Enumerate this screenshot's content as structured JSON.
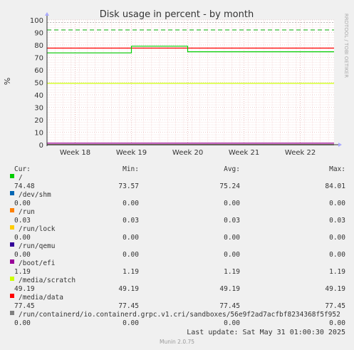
{
  "chart_data": {
    "type": "line",
    "title": "Disk usage in percent - by month",
    "ylabel": "%",
    "ylim": [
      0,
      100
    ],
    "yticks": [
      0,
      10,
      20,
      30,
      40,
      50,
      60,
      70,
      80,
      90,
      100
    ],
    "xticks": [
      "Week 18",
      "Week 19",
      "Week 20",
      "Week 21",
      "Week 22"
    ],
    "x_range_weeks": [
      17.5,
      22.6
    ],
    "xtick_weeks": [
      18,
      19,
      20,
      21,
      22
    ],
    "warning_level": 92,
    "critical_level": 98,
    "grid": true,
    "side_label": "RRDTOOL / TOBI OETIKER",
    "series": [
      {
        "name": "/",
        "color": "#00cc00",
        "points": [
          [
            17.5,
            73.6
          ],
          [
            19.0,
            73.6
          ],
          [
            19.0,
            79
          ],
          [
            20.0,
            79
          ],
          [
            20.0,
            74.5
          ],
          [
            22.6,
            74.5
          ]
        ]
      },
      {
        "name": "/dev/shm",
        "color": "#0066b3",
        "points": [
          [
            17.5,
            0
          ],
          [
            22.6,
            0
          ]
        ]
      },
      {
        "name": "/run",
        "color": "#ff8000",
        "points": [
          [
            17.5,
            0.03
          ],
          [
            22.6,
            0.03
          ]
        ]
      },
      {
        "name": "/run/lock",
        "color": "#ffcc00",
        "points": [
          [
            17.5,
            0
          ],
          [
            22.6,
            0
          ]
        ]
      },
      {
        "name": "/run/qemu",
        "color": "#330099",
        "points": [
          [
            17.5,
            0
          ],
          [
            22.6,
            0
          ]
        ]
      },
      {
        "name": "/boot/efi",
        "color": "#990099",
        "points": [
          [
            17.5,
            1.19
          ],
          [
            22.6,
            1.19
          ]
        ]
      },
      {
        "name": "/media/scratch",
        "color": "#ccff00",
        "points": [
          [
            17.5,
            49.19
          ],
          [
            22.6,
            49.19
          ]
        ]
      },
      {
        "name": "/media/data",
        "color": "#ff0000",
        "points": [
          [
            17.5,
            77.45
          ],
          [
            22.6,
            77.45
          ]
        ]
      },
      {
        "name": "/run/containerd/io.containerd.grpc.v1.cri/sandboxes/56e9f2ad7acfbf8234368f5f952",
        "color": "#808080",
        "points": [
          [
            17.5,
            0
          ],
          [
            22.6,
            0
          ]
        ]
      }
    ]
  },
  "legend": {
    "headers": {
      "cur": "Cur:",
      "min": "Min:",
      "avg": "Avg:",
      "max": "Max:"
    },
    "rows": [
      {
        "name": "/",
        "color": "#00cc00",
        "cur": "74.48",
        "min": "73.57",
        "avg": "75.24",
        "max": "84.01"
      },
      {
        "name": "/dev/shm",
        "color": "#0066b3",
        "cur": "0.00",
        "min": "0.00",
        "avg": "0.00",
        "max": "0.00"
      },
      {
        "name": "/run",
        "color": "#ff8000",
        "cur": "0.03",
        "min": "0.03",
        "avg": "0.03",
        "max": "0.03"
      },
      {
        "name": "/run/lock",
        "color": "#ffcc00",
        "cur": "0.00",
        "min": "0.00",
        "avg": "0.00",
        "max": "0.00"
      },
      {
        "name": "/run/qemu",
        "color": "#330099",
        "cur": "0.00",
        "min": "0.00",
        "avg": "0.00",
        "max": "0.00"
      },
      {
        "name": "/boot/efi",
        "color": "#990099",
        "cur": "1.19",
        "min": "1.19",
        "avg": "1.19",
        "max": "1.19"
      },
      {
        "name": "/media/scratch",
        "color": "#ccff00",
        "cur": "49.19",
        "min": "49.19",
        "avg": "49.19",
        "max": "49.19"
      },
      {
        "name": "/media/data",
        "color": "#ff0000",
        "cur": "77.45",
        "min": "77.45",
        "avg": "77.45",
        "max": "77.45"
      },
      {
        "name": "/run/containerd/io.containerd.grpc.v1.cri/sandboxes/56e9f2ad7acfbf8234368f5f952",
        "color": "#808080",
        "cur": "0.00",
        "min": "0.00",
        "avg": "0.00",
        "max": "0.00"
      }
    ]
  },
  "last_update": "Last update: Sat May 31 01:00:30 2025",
  "version": "Munin 2.0.75"
}
